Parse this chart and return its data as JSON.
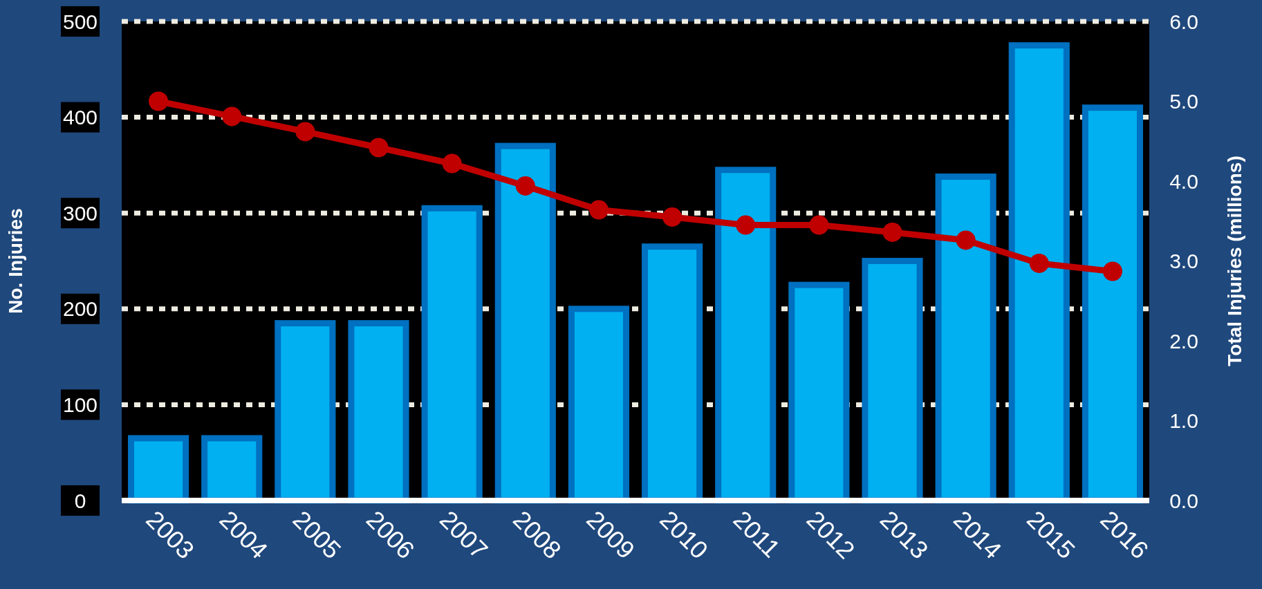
{
  "chart_data": {
    "type": "bar",
    "ylabel": "No. Injuries",
    "y2label": "Total Injuries (millions)",
    "categories": [
      "2003",
      "2004",
      "2005",
      "2006",
      "2007",
      "2008",
      "2009",
      "2010",
      "2011",
      "2012",
      "2013",
      "2014",
      "2015",
      "2016"
    ],
    "series": [
      {
        "color": "#00b0f0",
        "values": [
          65,
          65,
          185,
          185,
          305,
          370,
          200,
          265,
          345,
          225,
          250,
          338,
          475,
          410
        ]
      },
      {
        "type": "line",
        "axis": "y2",
        "color": "#c00000",
        "marker": "circle",
        "values": [
          5.0,
          4.81,
          4.62,
          4.42,
          4.22,
          3.94,
          3.64,
          3.55,
          3.45,
          3.45,
          3.36,
          3.26,
          2.97,
          2.87
        ]
      }
    ],
    "ylim": [
      0,
      500
    ],
    "yticks": [
      0,
      100,
      200,
      300,
      400,
      500
    ],
    "y2lim": [
      0,
      6
    ],
    "y2ticks": [
      {
        "value": 0,
        "label": "0.0"
      },
      {
        "value": 1,
        "label": "1.0"
      },
      {
        "value": 2,
        "label": "2.0"
      },
      {
        "value": 3,
        "label": "3.0"
      },
      {
        "value": 4,
        "label": "4.0"
      },
      {
        "value": 5,
        "label": "5.0"
      },
      {
        "value": 6,
        "label": "6.0"
      }
    ],
    "grid": "y",
    "line_style": "solid"
  }
}
